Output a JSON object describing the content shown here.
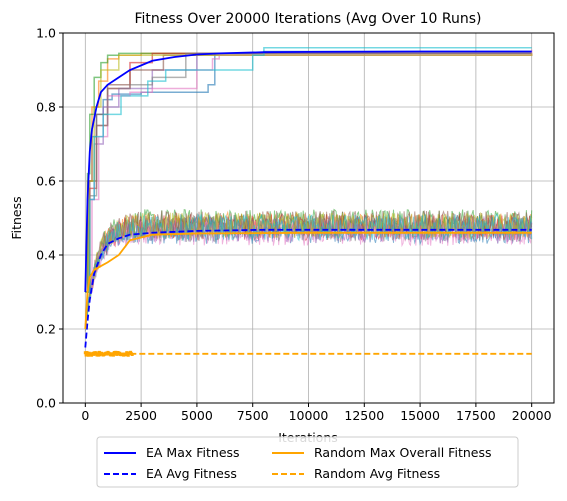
{
  "chart_data": {
    "type": "line",
    "title": "Fitness Over 20000 Iterations (Avg Over 10 Runs)",
    "xlabel": "Iterations",
    "ylabel": "Fitness",
    "xlim": [
      -1000,
      21000
    ],
    "ylim": [
      0.0,
      1.0
    ],
    "x_ticks": [
      0,
      2500,
      5000,
      7500,
      10000,
      12500,
      15000,
      17500,
      20000
    ],
    "y_ticks": [
      0.0,
      0.2,
      0.4,
      0.6,
      0.8,
      1.0
    ],
    "grid": true,
    "legend_position": "bottom-center, below axes, 2 columns",
    "series": [
      {
        "name": "EA Max Fitness",
        "color": "#0000ff",
        "dash": "solid",
        "x": [
          0,
          100,
          200,
          300,
          500,
          700,
          1000,
          1500,
          2000,
          3000,
          4000,
          5000,
          6000,
          8000,
          10000,
          15000,
          20000
        ],
        "values": [
          0.3,
          0.55,
          0.68,
          0.74,
          0.8,
          0.84,
          0.86,
          0.88,
          0.9,
          0.925,
          0.935,
          0.942,
          0.945,
          0.948,
          0.949,
          0.95,
          0.95
        ]
      },
      {
        "name": "EA Avg Fitness",
        "color": "#0000ff",
        "dash": "dashed",
        "x": [
          0,
          100,
          200,
          400,
          700,
          1000,
          1500,
          2000,
          3000,
          5000,
          8000,
          10000,
          15000,
          20000
        ],
        "values": [
          0.15,
          0.22,
          0.28,
          0.35,
          0.4,
          0.43,
          0.445,
          0.455,
          0.46,
          0.465,
          0.468,
          0.468,
          0.468,
          0.468
        ]
      },
      {
        "name": "Random Max Overall Fitness",
        "color": "#ffa500",
        "dash": "solid",
        "x": [
          0,
          100,
          200,
          400,
          700,
          1000,
          1500,
          2000,
          3000,
          5000,
          10000,
          15000,
          20000
        ],
        "values": [
          0.2,
          0.3,
          0.34,
          0.36,
          0.37,
          0.38,
          0.4,
          0.44,
          0.455,
          0.458,
          0.46,
          0.46,
          0.46
        ]
      },
      {
        "name": "Random Avg Fitness",
        "color": "#ffa500",
        "dash": "dashed",
        "x": [
          0,
          2000,
          20000
        ],
        "values": [
          0.133,
          0.133,
          0.133
        ]
      }
    ],
    "run_traces": {
      "colors": [
        "#1f77b4",
        "#ff7f0e",
        "#2ca02c",
        "#d62728",
        "#9467bd",
        "#8c564b",
        "#e377c2",
        "#7f7f7f",
        "#bcbd22",
        "#17becf"
      ],
      "max_runs": [
        {
          "x": [
            0,
            150,
            300,
            500,
            800,
            1200,
            1800,
            2500,
            4000,
            5500,
            5800,
            8000,
            20000
          ],
          "values": [
            0.3,
            0.6,
            0.72,
            0.78,
            0.82,
            0.835,
            0.835,
            0.84,
            0.84,
            0.86,
            0.945,
            0.95,
            0.95
          ]
        },
        {
          "x": [
            0,
            100,
            300,
            600,
            1000,
            1500,
            2500,
            20000
          ],
          "values": [
            0.3,
            0.6,
            0.8,
            0.87,
            0.93,
            0.94,
            0.945,
            0.945
          ]
        },
        {
          "x": [
            0,
            100,
            200,
            400,
            700,
            1000,
            1500,
            20000
          ],
          "values": [
            0.3,
            0.62,
            0.78,
            0.88,
            0.92,
            0.94,
            0.945,
            0.945
          ]
        },
        {
          "x": [
            0,
            200,
            500,
            1000,
            2000,
            3000,
            20000
          ],
          "values": [
            0.3,
            0.58,
            0.75,
            0.85,
            0.92,
            0.945,
            0.945
          ]
        },
        {
          "x": [
            0,
            150,
            400,
            800,
            1500,
            3000,
            5000,
            20000
          ],
          "values": [
            0.3,
            0.55,
            0.7,
            0.8,
            0.85,
            0.9,
            0.945,
            0.945
          ]
        },
        {
          "x": [
            0,
            200,
            500,
            1000,
            2000,
            3500,
            20000
          ],
          "values": [
            0.3,
            0.6,
            0.78,
            0.86,
            0.9,
            0.94,
            0.945
          ]
        },
        {
          "x": [
            0,
            300,
            600,
            1000,
            2000,
            3000,
            5000,
            5700,
            6000,
            20000
          ],
          "values": [
            0.3,
            0.55,
            0.72,
            0.83,
            0.84,
            0.85,
            0.9,
            0.93,
            0.94,
            0.955
          ]
        },
        {
          "x": [
            0,
            200,
            500,
            1000,
            2000,
            3000,
            4500,
            20000
          ],
          "values": [
            0.3,
            0.56,
            0.75,
            0.85,
            0.86,
            0.88,
            0.945,
            0.945
          ]
        },
        {
          "x": [
            0,
            150,
            400,
            700,
            1500,
            20000
          ],
          "values": [
            0.3,
            0.6,
            0.8,
            0.9,
            0.94,
            0.945
          ]
        },
        {
          "x": [
            0,
            200,
            400,
            800,
            1600,
            2800,
            3600,
            7500,
            8000,
            20000
          ],
          "values": [
            0.3,
            0.55,
            0.72,
            0.78,
            0.83,
            0.87,
            0.9,
            0.94,
            0.96,
            0.96
          ]
        }
      ],
      "avg_runs_level": [
        0.465,
        0.48,
        0.49,
        0.475,
        0.47,
        0.485,
        0.46,
        0.47,
        0.48,
        0.475
      ],
      "avg_runs_spread": 0.035
    }
  }
}
